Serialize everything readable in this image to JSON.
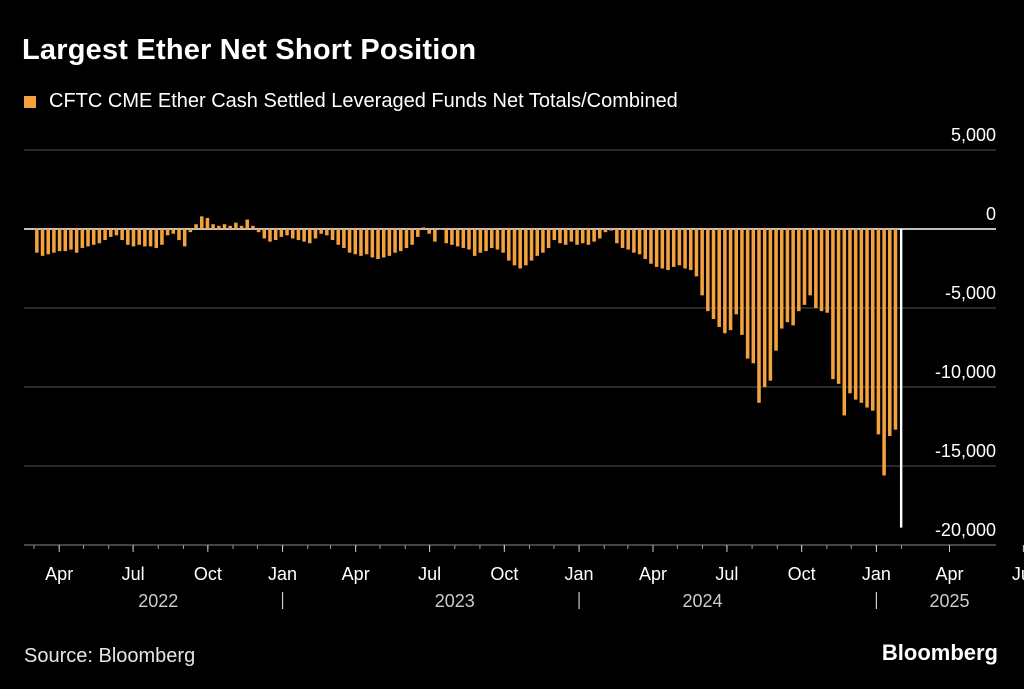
{
  "title": "Largest Ether Net Short Position",
  "legend_label": "CFTC CME Ether Cash Settled Leveraged Funds Net Totals/Combined",
  "source": "Source: Bloomberg",
  "brand": "Bloomberg",
  "colors": {
    "bar": "#f4a23d",
    "latest": "#ffffff",
    "grid": "#555555",
    "zero": "#ffffff",
    "background": "#000000"
  },
  "chart_data": {
    "type": "bar",
    "title": "Largest Ether Net Short Position",
    "series": [
      {
        "name": "CFTC CME Ether Cash Settled Leveraged Funds Net Totals/Combined"
      }
    ],
    "ylim": [
      -20000,
      5000
    ],
    "yticks": [
      5000,
      0,
      -5000,
      -10000,
      -15000,
      -20000
    ],
    "ytick_labels": [
      "5,000",
      "0",
      "-5,000",
      "-10,000",
      "-15,000",
      "-20,000"
    ],
    "xtick_labels": [
      "Apr",
      "Jul",
      "Oct",
      "Jan",
      "Apr",
      "Jul",
      "Oct",
      "Jan",
      "Apr",
      "Jul",
      "Oct",
      "Jan",
      "Apr",
      "Jul"
    ],
    "xticks": [
      "2022-04",
      "2022-07",
      "2022-10",
      "2023-01",
      "2023-04",
      "2023-07",
      "2023-10",
      "2024-01",
      "2024-04",
      "2024-07",
      "2024-10",
      "2025-01",
      "2025-04",
      "2025-07"
    ],
    "year_labels": [
      "2022",
      "2023",
      "2024",
      "2025"
    ],
    "year_label_positions": [
      "2022-08",
      "2023-08",
      "2024-06",
      "2025-04"
    ],
    "year_separators": [
      "2023-01",
      "2024-01",
      "2025-01"
    ],
    "x_start": "2022-03-01",
    "bar_interval_days": 7,
    "latest_value": -18900,
    "values": [
      -1500,
      -1700,
      -1600,
      -1500,
      -1400,
      -1400,
      -1300,
      -1500,
      -1200,
      -1100,
      -1000,
      -900,
      -700,
      -500,
      -400,
      -700,
      -1000,
      -1100,
      -1000,
      -1100,
      -1100,
      -1200,
      -1000,
      -400,
      -300,
      -700,
      -1100,
      -200,
      300,
      800,
      700,
      300,
      200,
      300,
      200,
      400,
      200,
      600,
      200,
      -200,
      -600,
      -800,
      -700,
      -500,
      -400,
      -600,
      -700,
      -800,
      -900,
      -600,
      -300,
      -400,
      -700,
      -1000,
      -1200,
      -1500,
      -1600,
      -1700,
      -1600,
      -1800,
      -1900,
      -1800,
      -1700,
      -1500,
      -1400,
      -1200,
      -1000,
      -500,
      100,
      -300,
      -800,
      0,
      -900,
      -1000,
      -1100,
      -1200,
      -1300,
      -1700,
      -1500,
      -1400,
      -1200,
      -1300,
      -1500,
      -2000,
      -2300,
      -2500,
      -2300,
      -2000,
      -1700,
      -1500,
      -1200,
      -700,
      -900,
      -1000,
      -800,
      -1000,
      -900,
      -1000,
      -800,
      -600,
      -200,
      -100,
      -900,
      -1200,
      -1300,
      -1500,
      -1600,
      -1900,
      -2200,
      -2400,
      -2500,
      -2600,
      -2400,
      -2300,
      -2500,
      -2600,
      -3000,
      -4200,
      -5200,
      -5700,
      -6200,
      -6600,
      -6400,
      -5400,
      -6700,
      -8200,
      -8500,
      -11000,
      -10000,
      -9600,
      -7700,
      -6300,
      -5900,
      -6100,
      -5200,
      -4800,
      -4200,
      -5000,
      -5200,
      -5300,
      -9500,
      -9800,
      -11800,
      -10400,
      -10800,
      -11000,
      -11300,
      -11500,
      -13000,
      -15600,
      -13100,
      -12700
    ]
  }
}
